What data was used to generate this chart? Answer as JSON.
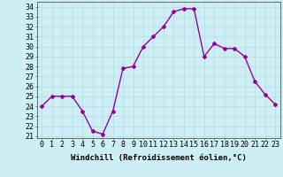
{
  "x": [
    0,
    1,
    2,
    3,
    4,
    5,
    6,
    7,
    8,
    9,
    10,
    11,
    12,
    13,
    14,
    15,
    16,
    17,
    18,
    19,
    20,
    21,
    22,
    23
  ],
  "y": [
    24.0,
    25.0,
    25.0,
    25.0,
    23.5,
    21.5,
    21.2,
    23.5,
    27.8,
    28.0,
    30.0,
    31.0,
    32.0,
    33.5,
    33.8,
    33.8,
    29.0,
    30.3,
    29.8,
    29.8,
    29.0,
    26.5,
    25.2,
    24.2
  ],
  "line_color": "#990099",
  "marker": "D",
  "markersize": 2.0,
  "bg_color": "#cdeef4",
  "grid_color": "#b0dde4",
  "xlabel": "Windchill (Refroidissement éolien,°C)",
  "xlabel_fontsize": 6.5,
  "ylabel_ticks": [
    21,
    22,
    23,
    24,
    25,
    26,
    27,
    28,
    29,
    30,
    31,
    32,
    33,
    34
  ],
  "xlim": [
    -0.5,
    23.5
  ],
  "ylim": [
    20.8,
    34.5
  ],
  "tick_fontsize": 6.0,
  "linewidth": 1.0
}
